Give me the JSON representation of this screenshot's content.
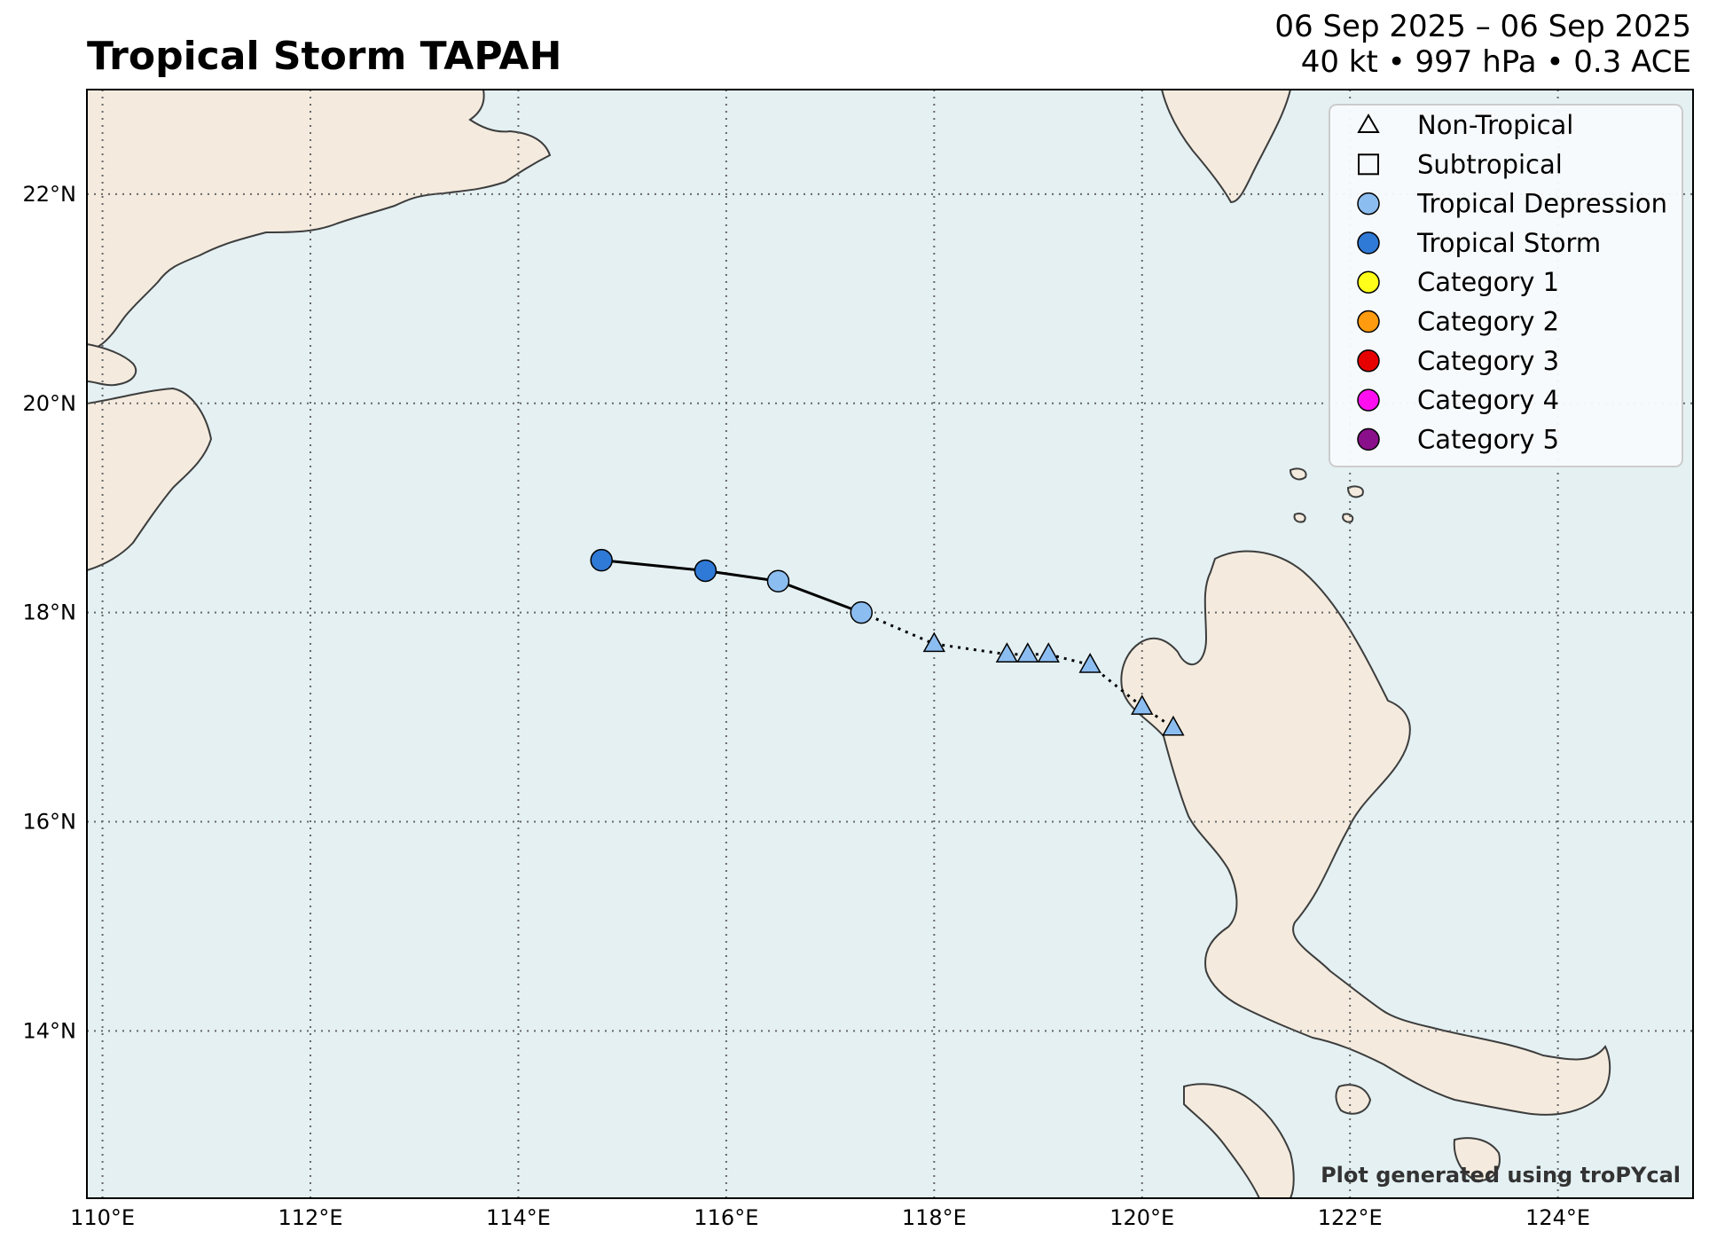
{
  "header": {
    "title": "Tropical Storm TAPAH",
    "date_range": "06 Sep 2025 – 06 Sep 2025",
    "stats": "40 kt • 997 hPa • 0.3 ACE"
  },
  "map": {
    "extent": {
      "lon": [
        109.85,
        125.3
      ],
      "lat": [
        12.4,
        23.0
      ]
    },
    "ocean_color": "#e4f0f2",
    "land_color": "#f4ebde",
    "coast_color": "#3d3d3d",
    "grid_lons": [
      110,
      112,
      114,
      116,
      118,
      120,
      122,
      124
    ],
    "grid_lats": [
      14,
      16,
      18,
      20,
      22
    ],
    "lon_labels": [
      "110°E",
      "112°E",
      "114°E",
      "116°E",
      "118°E",
      "120°E",
      "122°E",
      "124°E"
    ],
    "lat_labels": [
      "14°N",
      "16°N",
      "18°N",
      "20°N",
      "22°N"
    ]
  },
  "track": [
    {
      "lon": 114.8,
      "lat": 18.5,
      "type": "Tropical Storm"
    },
    {
      "lon": 115.8,
      "lat": 18.4,
      "type": "Tropical Storm"
    },
    {
      "lon": 116.5,
      "lat": 18.3,
      "type": "Tropical Depression"
    },
    {
      "lon": 117.3,
      "lat": 18.0,
      "type": "Tropical Depression"
    },
    {
      "lon": 118.0,
      "lat": 17.7,
      "type": "Non-Tropical"
    },
    {
      "lon": 118.7,
      "lat": 17.6,
      "type": "Non-Tropical"
    },
    {
      "lon": 118.9,
      "lat": 17.6,
      "type": "Non-Tropical"
    },
    {
      "lon": 119.1,
      "lat": 17.6,
      "type": "Non-Tropical"
    },
    {
      "lon": 119.5,
      "lat": 17.5,
      "type": "Non-Tropical"
    },
    {
      "lon": 120.0,
      "lat": 17.1,
      "type": "Non-Tropical"
    },
    {
      "lon": 120.3,
      "lat": 16.9,
      "type": "Non-Tropical"
    }
  ],
  "legend": {
    "items": [
      {
        "label": "Non-Tropical",
        "marker": "triangle",
        "color": "none"
      },
      {
        "label": "Subtropical",
        "marker": "square",
        "color": "none"
      },
      {
        "label": "Tropical Depression",
        "marker": "circle",
        "color": "#8cbdf0"
      },
      {
        "label": "Tropical Storm",
        "marker": "circle",
        "color": "#2f7ad6"
      },
      {
        "label": "Category 1",
        "marker": "circle",
        "color": "#ffff19"
      },
      {
        "label": "Category 2",
        "marker": "circle",
        "color": "#ff9b0e"
      },
      {
        "label": "Category 3",
        "marker": "circle",
        "color": "#e60000"
      },
      {
        "label": "Category 4",
        "marker": "circle",
        "color": "#ff0ff0"
      },
      {
        "label": "Category 5",
        "marker": "circle",
        "color": "#8a0f8a"
      }
    ]
  },
  "credit": "Plot generated using troPYcal"
}
